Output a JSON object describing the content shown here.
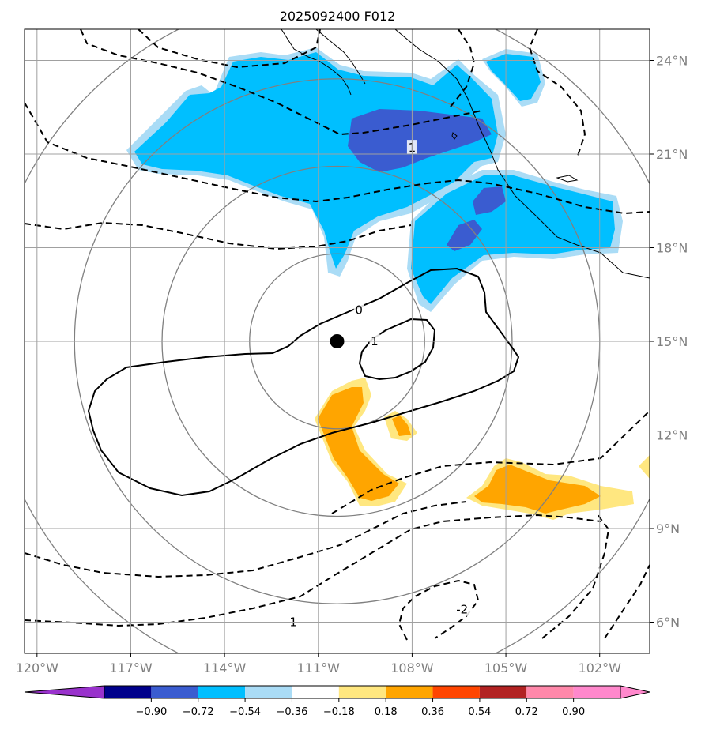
{
  "title": "2025092400 F012",
  "colors": {
    "grid": "#a0a0a0",
    "axis_label": "#808080",
    "range_ring": "#808080",
    "contour": "#000000",
    "center": "#000000",
    "lightblue": "#aadcf6",
    "cyan": "#00bfff",
    "blue": "#3a5cd0",
    "yellow": "#ffe780",
    "orange": "#ffa500"
  },
  "map": {
    "lon_range": [
      -120.4,
      -100.4
    ],
    "lat_range": [
      5.0,
      25.0
    ],
    "lon_ticks": [
      {
        "value": -120,
        "label": "120°W"
      },
      {
        "value": -117,
        "label": "117°W"
      },
      {
        "value": -114,
        "label": "114°W"
      },
      {
        "value": -111,
        "label": "111°W"
      },
      {
        "value": -108,
        "label": "108°W"
      },
      {
        "value": -105,
        "label": "105°W"
      },
      {
        "value": -102,
        "label": "102°W"
      }
    ],
    "lat_ticks": [
      {
        "value": 24,
        "label": "24°N"
      },
      {
        "value": 21,
        "label": "21°N"
      },
      {
        "value": 18,
        "label": "18°N"
      },
      {
        "value": 15,
        "label": "15°N"
      },
      {
        "value": 12,
        "label": "12°N"
      },
      {
        "value": 9,
        "label": "9°N"
      },
      {
        "value": 6,
        "label": "6°N"
      }
    ],
    "storm_center": {
      "lon": -110.4,
      "lat": 15.0
    },
    "range_ring_radii_deg": [
      2.8,
      5.6,
      8.4,
      11.2
    ],
    "contour_labels": [
      {
        "text": "0",
        "lon": -109.7,
        "lat": 16.0
      },
      {
        "text": "1",
        "lon": -109.2,
        "lat": 15.0
      },
      {
        "text": "1",
        "lon": -108.0,
        "lat": 21.2
      },
      {
        "text": "1",
        "lon": -111.8,
        "lat": 6.0
      },
      {
        "text": "-2",
        "lon": -106.4,
        "lat": 6.4
      }
    ]
  },
  "colorbar": {
    "ticks": [
      "−0.90",
      "−0.72",
      "−0.54",
      "−0.36",
      "−0.18",
      "0.18",
      "0.36",
      "0.54",
      "0.72",
      "0.90"
    ],
    "colors": [
      "#9932cc",
      "#00008b",
      "#3a5cd0",
      "#00bfff",
      "#aadcf6",
      "#ffffff",
      "#ffe780",
      "#ffa500",
      "#ff4500",
      "#b22222",
      "#ff88aa",
      "#ff88cc"
    ]
  }
}
